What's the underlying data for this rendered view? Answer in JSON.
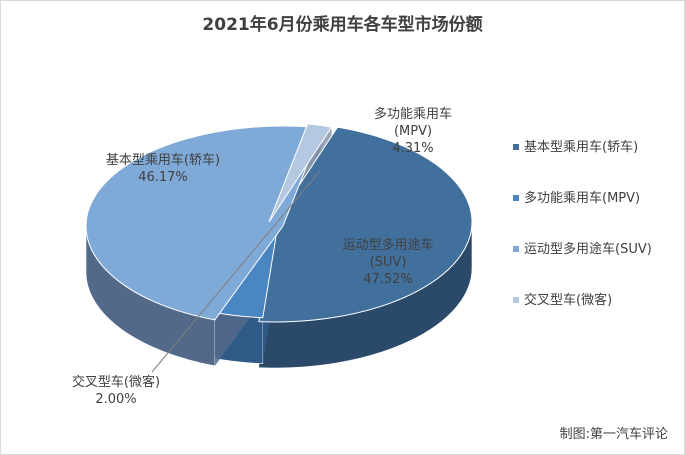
{
  "chart_data": {
    "type": "pie",
    "title": "2021年6月份乘用车各车型市场份额",
    "slices": [
      {
        "name": "基本型乘用车(轿车)",
        "label_lines": [
          "基本型乘用车(轿车)"
        ],
        "value": 46.17,
        "pct_label": "46.17%",
        "color": "#41709d",
        "side_color": "#2b4a6a"
      },
      {
        "name": "多功能乘用车(MPV)",
        "label_lines": [
          "多功能乘用车",
          "(MPV)"
        ],
        "value": 4.31,
        "pct_label": "4.31%",
        "color": "#4a86c2",
        "side_color": "#2f5b86"
      },
      {
        "name": "运动型多用途车(SUV)",
        "label_lines": [
          "运动型多用途车",
          "(SUV)"
        ],
        "value": 47.52,
        "pct_label": "47.52%",
        "color": "#7fa9d6",
        "side_color": "#52698a"
      },
      {
        "name": "交叉型车(微客)",
        "label_lines": [
          "交叉型车(微客)"
        ],
        "value": 2.0,
        "pct_label": "2.00%",
        "color": "#b5c8e1",
        "side_color": "#8796aa"
      }
    ],
    "legend": {
      "position": "right",
      "items": [
        "基本型乘用车(轿车)",
        "多功能乘用车(MPV)",
        "运动型多用途车(SUV)",
        "交叉型车(微客)"
      ]
    },
    "style": "3d-exploded"
  },
  "source_note": "制图:第一汽车评论"
}
